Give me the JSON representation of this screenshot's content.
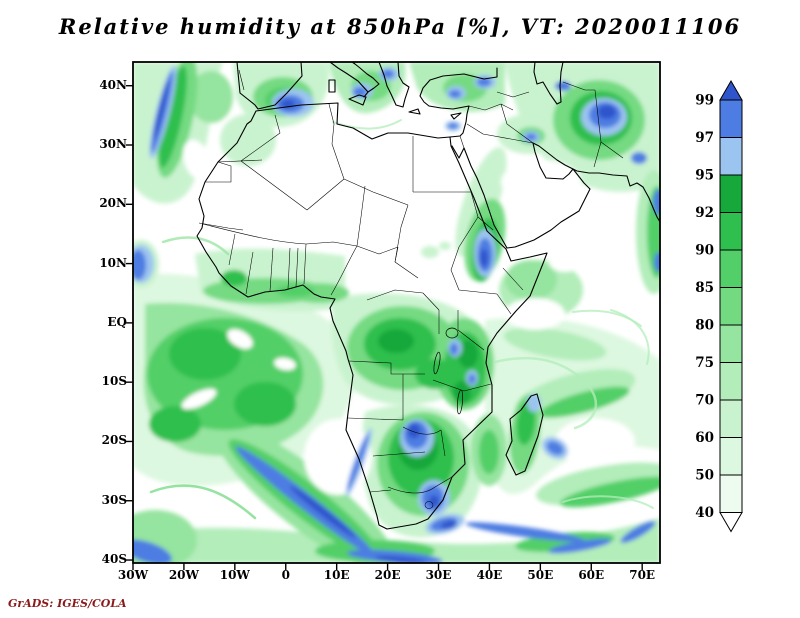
{
  "title": "Relative humidity at 850hPa [%], VT: 2020011106",
  "footer": "GrADS: IGES/COLA",
  "colors": {
    "attribution_text": "#8b1a1a",
    "map_outline": "#000000",
    "background": "#ffffff"
  },
  "chart_data": {
    "type": "heatmap",
    "title": "Relative humidity at 850hPa [%], VT: 2020011106",
    "variable": "Relative humidity",
    "pressure_level": "850hPa",
    "units": "%",
    "valid_time": "2020011106",
    "source_label": "GrADS: IGES/COLA",
    "projection": "lat-lon",
    "lon_range": [
      -30,
      73.5
    ],
    "lat_range": [
      -40.5,
      44
    ],
    "grid": false,
    "legend_position": "right",
    "xticks": [
      {
        "label": "30W",
        "lon": -30
      },
      {
        "label": "20W",
        "lon": -20
      },
      {
        "label": "10W",
        "lon": -10
      },
      {
        "label": "0",
        "lon": 0
      },
      {
        "label": "10E",
        "lon": 10
      },
      {
        "label": "20E",
        "lon": 20
      },
      {
        "label": "30E",
        "lon": 30
      },
      {
        "label": "40E",
        "lon": 40
      },
      {
        "label": "50E",
        "lon": 50
      },
      {
        "label": "60E",
        "lon": 60
      },
      {
        "label": "70E",
        "lon": 70
      }
    ],
    "yticks": [
      {
        "label": "40N",
        "lat": 40
      },
      {
        "label": "30N",
        "lat": 30
      },
      {
        "label": "20N",
        "lat": 20
      },
      {
        "label": "10N",
        "lat": 10
      },
      {
        "label": "EQ",
        "lat": 0
      },
      {
        "label": "10S",
        "lat": -10
      },
      {
        "label": "20S",
        "lat": -20
      },
      {
        "label": "30S",
        "lat": -30
      },
      {
        "label": "40S",
        "lat": -40
      }
    ],
    "colorbar": {
      "orientation": "vertical",
      "tick_labels": [
        "99",
        "97",
        "95",
        "92",
        "90",
        "85",
        "80",
        "75",
        "70",
        "60",
        "50",
        "40"
      ],
      "segment_colors_top_to_bottom": [
        "#2e55cc",
        "#4d7de2",
        "#9cc4f0",
        "#17a83b",
        "#2fbf4e",
        "#52cf68",
        "#74da82",
        "#95e49f",
        "#b2edba",
        "#c9f3cf",
        "#ddf8e0",
        "#eefcf0",
        "#ffffff"
      ],
      "arrow_above_label": "99",
      "arrow_below_label": "40"
    },
    "field_features": [
      "Humidity >95% (blue shading): Maghreb coast, central/eastern Mediterranean, Iran-Caspian region, Ethiopian highlands and southern Red Sea, East African lakes, Botswana/Zimbabwe and eastern South Africa, Namibian coast, and frontal bands over the southern Atlantic and southern Indian Ocean",
      "Humidity 75-95% (green shading): equatorial/south Atlantic, Congo Basin, Gulf of Guinea coast, East Africa, Madagascar and mid-latitude storm tracks",
      "Humidity <50% (white): Sahara, Arabian Peninsula interior, subtropical highs off Namibia and central Indian Ocean"
    ]
  }
}
